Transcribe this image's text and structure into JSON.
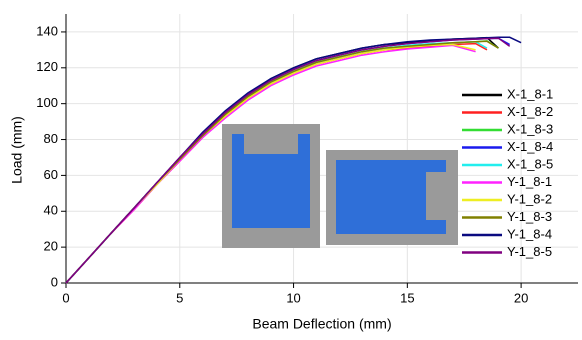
{
  "chart_data": {
    "type": "line",
    "x_label": "Beam Deflection (mm)",
    "y_label": "Load (mm)",
    "x": [
      0,
      1,
      2,
      3,
      4,
      5,
      6,
      7,
      8,
      9,
      10,
      11,
      12,
      13,
      14,
      15,
      16,
      17,
      18,
      18.5,
      19,
      19.5,
      20
    ],
    "series": [
      {
        "name": "X-1_8-1",
        "color": "#000000",
        "values": [
          0,
          14,
          28,
          42,
          56,
          70,
          83,
          95,
          105,
          114,
          120,
          125,
          128,
          131,
          133,
          134,
          135,
          136,
          136.5,
          136.8,
          131,
          null,
          null
        ]
      },
      {
        "name": "X-1_8-2",
        "color": "#ff2020",
        "values": [
          0,
          14,
          28,
          41,
          55,
          68,
          81,
          93,
          103,
          111,
          117,
          122,
          125,
          128,
          130,
          131,
          132,
          133,
          133.5,
          130,
          null,
          null,
          null
        ]
      },
      {
        "name": "X-1_8-3",
        "color": "#33dd33",
        "values": [
          0,
          14,
          28,
          42,
          56,
          69,
          82,
          94,
          104,
          112,
          118,
          123,
          126,
          129,
          131,
          132,
          133,
          134,
          134.5,
          135,
          131,
          null,
          null
        ]
      },
      {
        "name": "X-1_8-4",
        "color": "#1a1aee",
        "values": [
          0,
          14,
          28,
          42,
          56,
          70,
          83,
          95,
          105,
          113,
          119,
          124,
          127,
          130,
          132,
          133.5,
          134.5,
          135.5,
          136,
          136.3,
          136.5,
          133,
          null
        ]
      },
      {
        "name": "X-1_8-5",
        "color": "#22eeee",
        "values": [
          0,
          14,
          28,
          42,
          55,
          69,
          82,
          94,
          104,
          112,
          118,
          123,
          126,
          129,
          131,
          132.5,
          133.5,
          134,
          134.5,
          131,
          null,
          null,
          null
        ]
      },
      {
        "name": "Y-1_8-1",
        "color": "#ff22ff",
        "values": [
          0,
          14,
          28,
          41,
          55,
          68,
          81,
          92,
          102,
          110,
          116,
          121,
          124,
          127,
          129,
          130.5,
          131.5,
          132.5,
          129,
          null,
          null,
          null,
          null
        ]
      },
      {
        "name": "Y-1_8-2",
        "color": "#eeee22",
        "values": [
          0,
          14,
          28,
          42,
          55,
          69,
          82,
          93,
          103,
          111,
          117,
          122,
          125,
          128,
          130,
          131.5,
          132.5,
          133,
          130,
          null,
          null,
          null,
          null
        ]
      },
      {
        "name": "Y-1_8-3",
        "color": "#808000",
        "values": [
          0,
          14,
          28,
          42,
          56,
          69,
          82,
          94,
          104,
          112,
          118,
          123,
          126,
          129,
          131,
          132,
          133,
          134,
          134.5,
          134.8,
          131,
          null,
          null
        ]
      },
      {
        "name": "Y-1_8-4",
        "color": "#0a0a80",
        "values": [
          0,
          14,
          28,
          42,
          56,
          70,
          84,
          96,
          106,
          114,
          120,
          125,
          128,
          131,
          133,
          134.5,
          135.5,
          136,
          136.5,
          136.8,
          137,
          137,
          134
        ]
      },
      {
        "name": "Y-1_8-5",
        "color": "#800080",
        "values": [
          0,
          14,
          28,
          42,
          56,
          70,
          83,
          95,
          105,
          113,
          119,
          124,
          127,
          130,
          132,
          133.5,
          134.5,
          135.5,
          136,
          136.3,
          136.5,
          132,
          null
        ]
      }
    ],
    "xlim": [
      0,
      22.5
    ],
    "xticks": [
      0,
      5,
      10,
      15,
      20
    ],
    "ylim": [
      0,
      150
    ],
    "yticks": [
      0,
      20,
      40,
      60,
      80,
      100,
      120,
      140
    ],
    "grid": true,
    "legend": "right"
  }
}
